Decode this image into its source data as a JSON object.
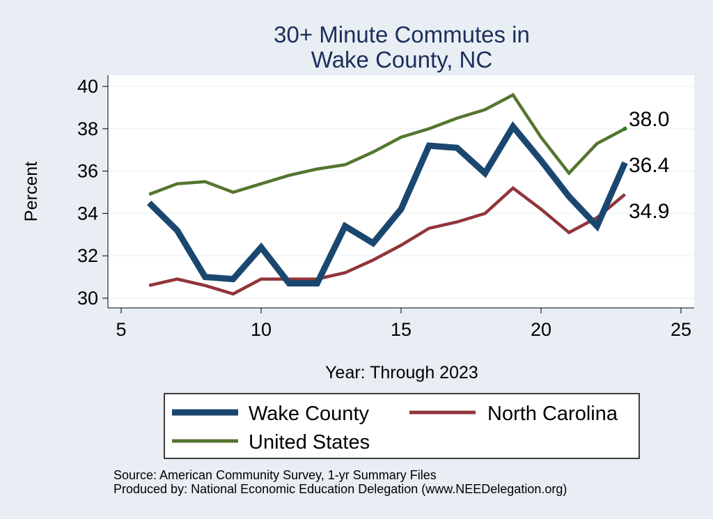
{
  "chart_data": {
    "type": "line",
    "title_lines": [
      "30+ Minute Commutes in",
      "Wake County, NC"
    ],
    "xlabel": "Year: Through 2023",
    "ylabel": "Percent",
    "xlim": [
      5,
      25
    ],
    "ylim": [
      30,
      40
    ],
    "xticks": [
      5,
      10,
      15,
      20,
      25
    ],
    "yticks": [
      30,
      32,
      34,
      36,
      38,
      40
    ],
    "grid": true,
    "legend_position": "bottom",
    "series": [
      {
        "name": "Wake County",
        "color": "#1a476f",
        "x": [
          6,
          7,
          8,
          9,
          10,
          11,
          12,
          13,
          14,
          15,
          16,
          17,
          18,
          19,
          20,
          21,
          22,
          23
        ],
        "values": [
          34.5,
          33.2,
          31.0,
          30.9,
          32.4,
          30.7,
          30.7,
          33.4,
          32.6,
          34.2,
          37.2,
          37.1,
          35.9,
          38.1,
          36.5,
          34.8,
          33.4,
          36.4
        ]
      },
      {
        "name": "North Carolina",
        "color": "#90353b",
        "x": [
          6,
          7,
          8,
          9,
          10,
          11,
          12,
          13,
          14,
          15,
          16,
          17,
          18,
          19,
          20,
          21,
          22,
          23
        ],
        "values": [
          30.6,
          30.9,
          30.6,
          30.2,
          30.9,
          30.9,
          30.9,
          31.2,
          31.8,
          32.5,
          33.3,
          33.6,
          34.0,
          35.2,
          34.2,
          33.1,
          33.8,
          34.9
        ]
      },
      {
        "name": "United States",
        "color": "#55752f",
        "x": [
          6,
          7,
          8,
          9,
          10,
          11,
          12,
          13,
          14,
          15,
          16,
          17,
          18,
          19,
          20,
          21,
          22,
          23
        ],
        "values": [
          34.9,
          35.4,
          35.5,
          35.0,
          35.4,
          35.8,
          36.1,
          36.3,
          36.9,
          37.6,
          38.0,
          38.5,
          38.9,
          39.6,
          37.6,
          35.9,
          37.3,
          38.0
        ]
      }
    ],
    "end_labels": [
      "38.0",
      "36.4",
      "34.9"
    ],
    "notes": [
      "Source: American Community Survey, 1-yr Summary Files",
      "Produced by: National Economic Education Delegation (www.NEEDelegation.org)"
    ]
  }
}
